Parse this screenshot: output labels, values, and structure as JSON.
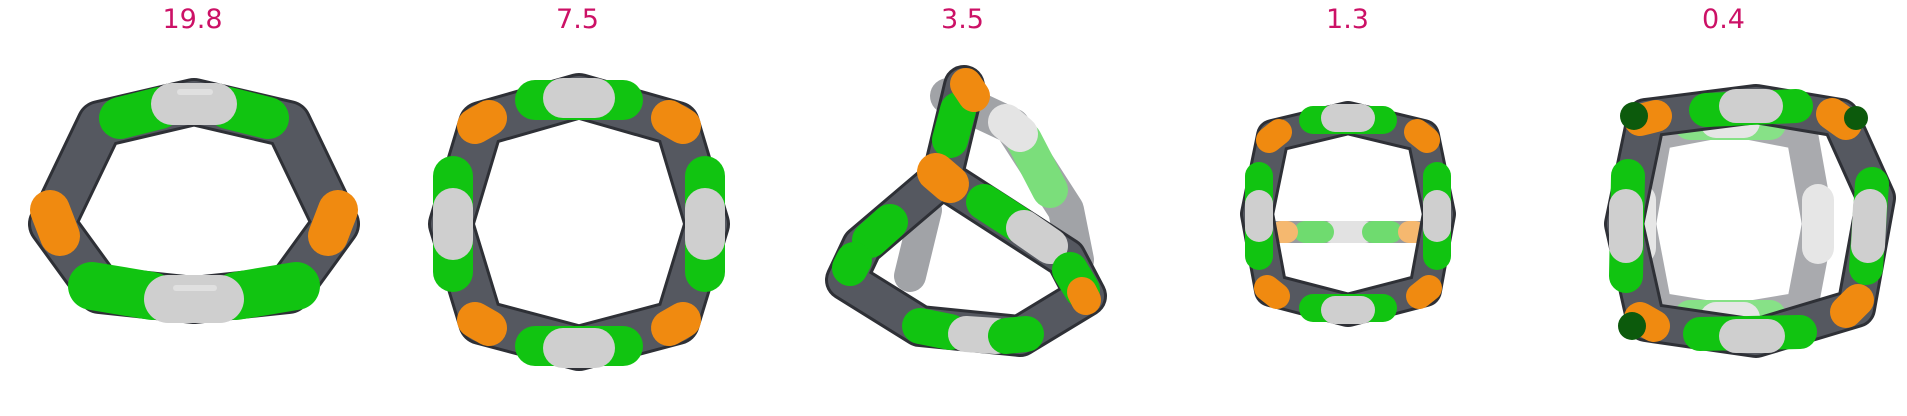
{
  "colors": {
    "label": "#cc1166",
    "green": "#11c411",
    "dark_gray": "#555860",
    "light_gray": "#cfcfcf",
    "orange": "#f08a10"
  },
  "panels": [
    {
      "label": "19.8"
    },
    {
      "label": "7.5"
    },
    {
      "label": "3.5"
    },
    {
      "label": "1.3"
    },
    {
      "label": "0.4"
    }
  ]
}
